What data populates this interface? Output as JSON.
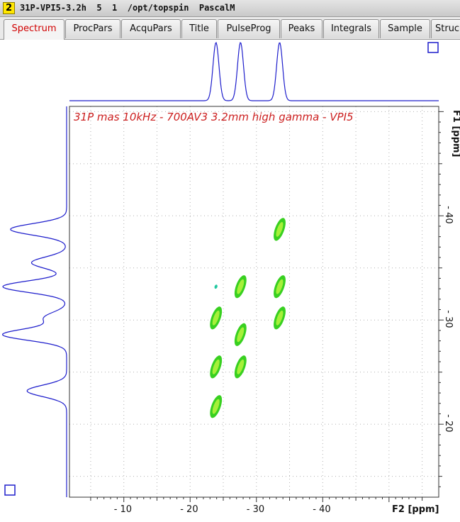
{
  "window": {
    "badge": "2",
    "title": "31P-VPI5-3.2h  5  1  /opt/topspin  PascalM"
  },
  "tabs": [
    {
      "label": "Spectrum",
      "active": true
    },
    {
      "label": "ProcPars",
      "active": false
    },
    {
      "label": "AcquPars",
      "active": false
    },
    {
      "label": "Title",
      "active": false
    },
    {
      "label": "PulseProg",
      "active": false
    },
    {
      "label": "Peaks",
      "active": false
    },
    {
      "label": "Integrals",
      "active": false
    },
    {
      "label": "Sample",
      "active": false
    },
    {
      "label": "Struc",
      "active": false
    }
  ],
  "colors": {
    "trace": "#1e1ecc",
    "title_text": "#cc2020",
    "contour_fill": "#38d020",
    "contour_core": "#a6f03a",
    "grid": "#b0b0b0",
    "frame": "#333333"
  },
  "chart_data": {
    "type": "scatter",
    "subtype": "2D NMR contour plot",
    "title": "31P mas 10kHz - 700AV3 3.2mm high gamma - VPI5",
    "xlabel": "F2 [ppm]",
    "ylabel": "F1 [ppm]",
    "x_axis": {
      "reversed": true,
      "range": [
        1.8,
        57.5
      ],
      "ticks": [
        10,
        20,
        30,
        40
      ],
      "tick_labels": [
        "- 10",
        "- 20",
        "- 30",
        "- 40"
      ]
    },
    "y_axis": {
      "reversed": false,
      "range": [
        13.0,
        50.5
      ],
      "ticks": [
        20,
        30,
        40
      ],
      "tick_labels": [
        "- 20",
        "- 30",
        "- 40"
      ]
    },
    "grid": true,
    "f2_projection_peaks": [
      23.9,
      27.6,
      33.5
    ],
    "f1_projection_peaks": [
      23.2,
      28.6,
      30.2,
      33.2,
      35.5,
      38.7
    ],
    "cross_peaks": [
      {
        "f2": 33.5,
        "f1": 38.7
      },
      {
        "f2": 27.6,
        "f1": 33.2
      },
      {
        "f2": 33.5,
        "f1": 33.2
      },
      {
        "f2": 23.9,
        "f1": 33.2,
        "weak": true
      },
      {
        "f2": 23.9,
        "f1": 30.2
      },
      {
        "f2": 33.5,
        "f1": 30.2
      },
      {
        "f2": 27.6,
        "f1": 28.6
      },
      {
        "f2": 23.9,
        "f1": 25.5
      },
      {
        "f2": 27.6,
        "f1": 25.5
      },
      {
        "f2": 23.9,
        "f1": 21.7
      }
    ]
  }
}
